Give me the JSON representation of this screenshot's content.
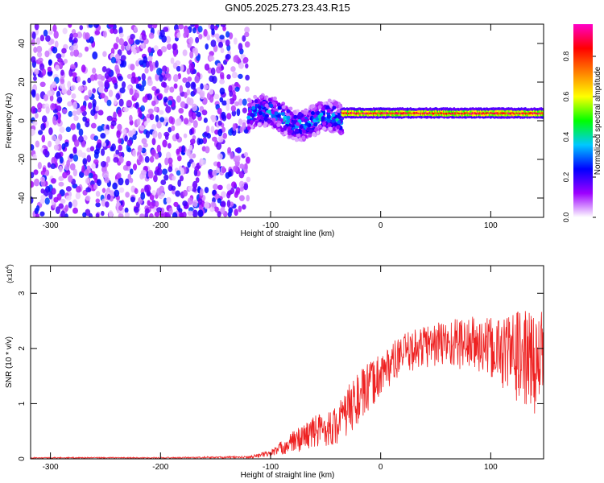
{
  "figure": {
    "title": "GN05.2025.273.23.43.R15"
  },
  "chart_data": [
    {
      "type": "heatmap",
      "xlabel": "Height of straight line (km)",
      "ylabel": "Frequency (Hz)",
      "xlim": [
        -318,
        148
      ],
      "ylim": [
        -50,
        50
      ],
      "xticks": [
        -300,
        -200,
        -100,
        0,
        100
      ],
      "yticks": [
        -40,
        -20,
        0,
        20,
        40
      ],
      "grid": false,
      "colorbar": {
        "label": "Normalized spectral amplitude",
        "range": [
          0,
          0.96
        ],
        "ticks": [
          0.0,
          0.2,
          0.4,
          0.6,
          0.8
        ],
        "tick_labels": [
          "0.0",
          "0.2",
          "0.4",
          "0.6",
          "0.8"
        ],
        "colors": [
          "#ffffff",
          "#9d00ff",
          "#0000ff",
          "#00c8ff",
          "#00ff00",
          "#ffff00",
          "#ff8000",
          "#ff0000",
          "#ff00c8"
        ]
      },
      "regions": [
        {
          "x_from": -318,
          "x_to": -120,
          "freq_from": -50,
          "freq_to": 50,
          "level": 0.1
        },
        {
          "x_from": -120,
          "x_to": -35,
          "center_freq": 3,
          "spread_hz": 8,
          "level": 0.3
        },
        {
          "x_from": -35,
          "x_to": 148,
          "center_freq": 4,
          "spread_hz": 3,
          "level": 0.9
        }
      ]
    },
    {
      "type": "line",
      "xlabel": "Height of straight line (km)",
      "ylabel": "SNR (10 * v/v)",
      "y_multiplier": "(x10",
      "y_multiplier_exp": "4",
      "y_multiplier_close": ")",
      "xlim": [
        -318,
        148
      ],
      "ylim": [
        0,
        3.5
      ],
      "xticks": [
        -300,
        -200,
        -100,
        0,
        100
      ],
      "yticks": [
        0,
        1,
        2,
        3
      ],
      "grid": false,
      "series_color": "#ee2222",
      "envelope": [
        {
          "x": -318,
          "mean": 0.02,
          "spread": 0.01
        },
        {
          "x": -200,
          "mean": 0.02,
          "spread": 0.01
        },
        {
          "x": -120,
          "mean": 0.03,
          "spread": 0.02
        },
        {
          "x": -100,
          "mean": 0.1,
          "spread": 0.06
        },
        {
          "x": -80,
          "mean": 0.3,
          "spread": 0.2
        },
        {
          "x": -60,
          "mean": 0.5,
          "spread": 0.3
        },
        {
          "x": -40,
          "mean": 0.6,
          "spread": 0.35
        },
        {
          "x": -25,
          "mean": 1.0,
          "spread": 0.5
        },
        {
          "x": -10,
          "mean": 1.3,
          "spread": 0.45
        },
        {
          "x": 0,
          "mean": 1.55,
          "spread": 0.4
        },
        {
          "x": 20,
          "mean": 1.9,
          "spread": 0.35
        },
        {
          "x": 40,
          "mean": 2.05,
          "spread": 0.4
        },
        {
          "x": 60,
          "mean": 2.1,
          "spread": 0.45
        },
        {
          "x": 80,
          "mean": 2.1,
          "spread": 0.5
        },
        {
          "x": 100,
          "mean": 2.0,
          "spread": 0.55
        },
        {
          "x": 120,
          "mean": 1.9,
          "spread": 0.8
        },
        {
          "x": 148,
          "mean": 1.7,
          "spread": 1.0
        }
      ]
    }
  ]
}
